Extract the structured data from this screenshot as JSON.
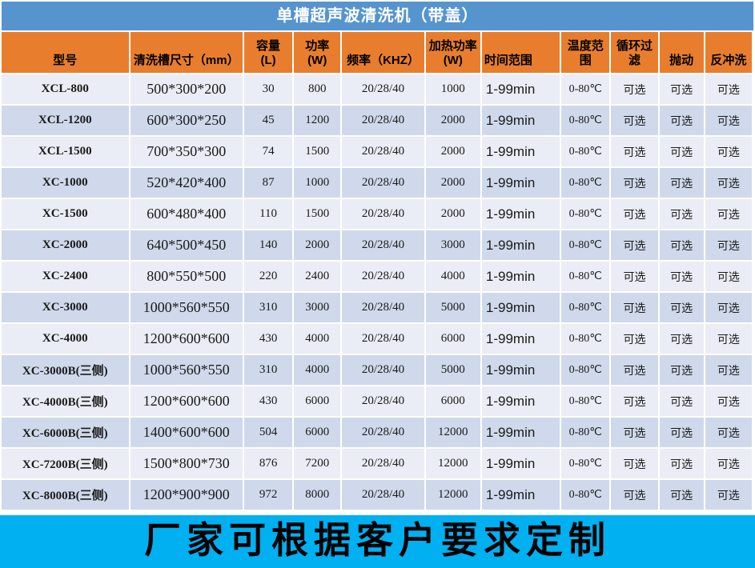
{
  "colors": {
    "title_bg": "#5694CE",
    "title_text": "#FFFFFF",
    "header_bg": "#E87E2D",
    "header_text": "#000000",
    "row_light": "#EAEDF5",
    "row_dark": "#CFD9EB",
    "cell_text": "#1A1A1A",
    "footer_bg": "#00B0F0",
    "footer_text": "#000000",
    "gap": "#FFFFFF"
  },
  "title": "单槽超声波清洗机（带盖）",
  "table": {
    "columns": [
      {
        "key": "model",
        "label": "型号"
      },
      {
        "key": "tank_size",
        "label": "清洗槽尺寸（mm）"
      },
      {
        "key": "capacity",
        "label": "容量\n(L)"
      },
      {
        "key": "power",
        "label": "功率\n(W)"
      },
      {
        "key": "frequency",
        "label": "频率（KHZ）"
      },
      {
        "key": "heating_power",
        "label": "加热功率\n(W)"
      },
      {
        "key": "time_range",
        "label": "时间范围"
      },
      {
        "key": "temp_range",
        "label": "温度范围"
      },
      {
        "key": "circulation_filter",
        "label": "循环过滤"
      },
      {
        "key": "agitation",
        "label": "抛动"
      },
      {
        "key": "backwash",
        "label": "反冲洗"
      }
    ],
    "rows": [
      [
        "XCL-800",
        "500*300*200",
        "30",
        "800",
        "20/28/40",
        "1000",
        "1-99min",
        "0-80℃",
        "可选",
        "可选",
        "可选"
      ],
      [
        "XCL-1200",
        "600*300*250",
        "45",
        "1200",
        "20/28/40",
        "2000",
        "1-99min",
        "0-80℃",
        "可选",
        "可选",
        "可选"
      ],
      [
        "XCL-1500",
        "700*350*300",
        "74",
        "1500",
        "20/28/40",
        "2000",
        "1-99min",
        "0-80℃",
        "可选",
        "可选",
        "可选"
      ],
      [
        "XC-1000",
        "520*420*400",
        "87",
        "1000",
        "20/28/40",
        "2000",
        "1-99min",
        "0-80℃",
        "可选",
        "可选",
        "可选"
      ],
      [
        "XC-1500",
        "600*480*400",
        "110",
        "1500",
        "20/28/40",
        "2000",
        "1-99min",
        "0-80℃",
        "可选",
        "可选",
        "可选"
      ],
      [
        "XC-2000",
        "640*500*450",
        "140",
        "2000",
        "20/28/40",
        "3000",
        "1-99min",
        "0-80℃",
        "可选",
        "可选",
        "可选"
      ],
      [
        "XC-2400",
        "800*550*500",
        "220",
        "2400",
        "20/28/40",
        "4000",
        "1-99min",
        "0-80℃",
        "可选",
        "可选",
        "可选"
      ],
      [
        "XC-3000",
        "1000*560*550",
        "310",
        "3000",
        "20/28/40",
        "5000",
        "1-99min",
        "0-80℃",
        "可选",
        "可选",
        "可选"
      ],
      [
        "XC-4000",
        "1200*600*600",
        "430",
        "4000",
        "20/28/40",
        "6000",
        "1-99min",
        "0-80℃",
        "可选",
        "可选",
        "可选"
      ],
      [
        "XC-3000B(三侧)",
        "1000*560*550",
        "310",
        "4000",
        "20/28/40",
        "5000",
        "1-99min",
        "0-80℃",
        "可选",
        "可选",
        "可选"
      ],
      [
        "XC-4000B(三侧)",
        "1200*600*600",
        "430",
        "6000",
        "20/28/40",
        "6000",
        "1-99min",
        "0-80℃",
        "可选",
        "可选",
        "可选"
      ],
      [
        "XC-6000B(三侧)",
        "1400*600*600",
        "504",
        "6000",
        "20/28/40",
        "12000",
        "1-99min",
        "0-80℃",
        "可选",
        "可选",
        "可选"
      ],
      [
        "XC-7200B(三侧)",
        "1500*800*730",
        "876",
        "7200",
        "20/28/40",
        "12000",
        "1-99min",
        "0-80℃",
        "可选",
        "可选",
        "可选"
      ],
      [
        "XC-8000B(三侧)",
        "1200*900*900",
        "972",
        "8000",
        "20/28/40",
        "12000",
        "1-99min",
        "0-80℃",
        "可选",
        "可选",
        "可选"
      ]
    ]
  },
  "footer": "厂家可根据客户要求定制"
}
